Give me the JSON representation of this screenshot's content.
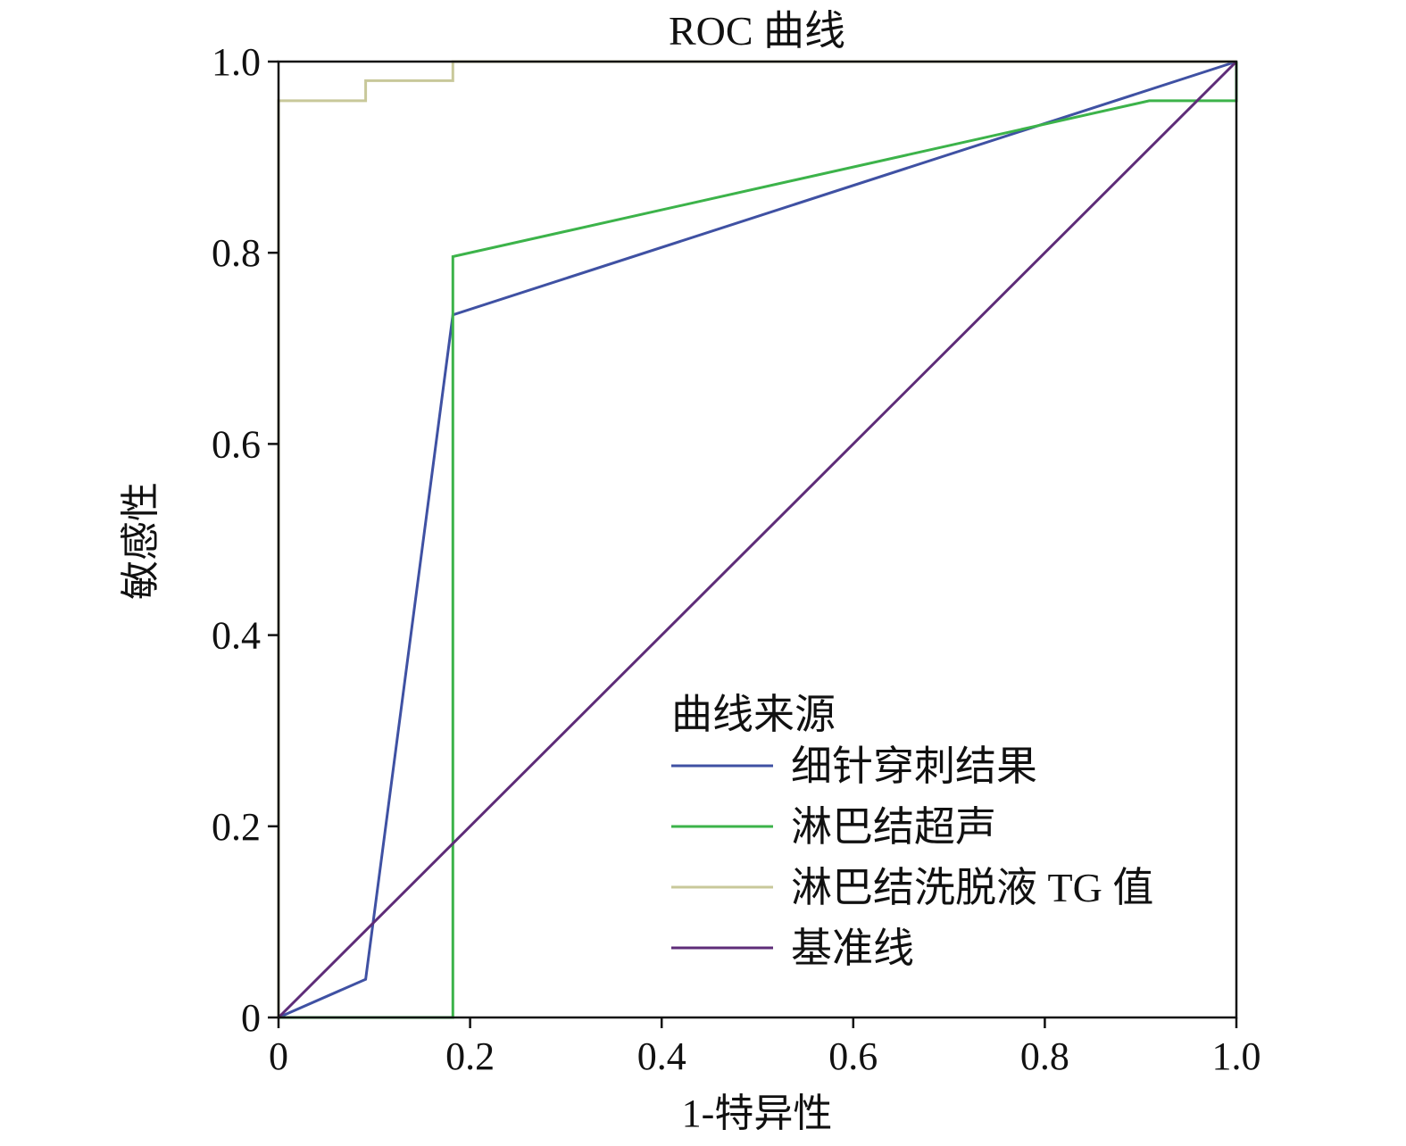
{
  "chart_data": {
    "type": "line",
    "title": "ROC 曲线",
    "xlabel": "1-特异性",
    "ylabel": "敏感性",
    "xlim": [
      0,
      1
    ],
    "ylim": [
      0,
      1
    ],
    "x_ticks": [
      0,
      0.2,
      0.4,
      0.6,
      0.8,
      1.0
    ],
    "x_tick_labels": [
      "0",
      "0.2",
      "0.4",
      "0.6",
      "0.8",
      "1.0"
    ],
    "y_ticks": [
      0,
      0.2,
      0.4,
      0.6,
      0.8,
      1.0
    ],
    "y_tick_labels": [
      "0",
      "0.2",
      "0.4",
      "0.6",
      "0.8",
      "1.0"
    ],
    "grid": false,
    "legend": {
      "title": "曲线来源",
      "position": "lower-right"
    },
    "series": [
      {
        "name": "细针穿刺结果",
        "color": "#3f51a3",
        "x": [
          0,
          0.091,
          0.182,
          1.0
        ],
        "y": [
          0,
          0.04,
          0.735,
          1.0
        ]
      },
      {
        "name": "淋巴结超声",
        "color": "#3cb34a",
        "x": [
          0,
          0.182,
          0.182,
          0.909,
          1.0,
          1.0
        ],
        "y": [
          0,
          0,
          0.796,
          0.959,
          0.959,
          1.0
        ]
      },
      {
        "name": "淋巴结洗脱液 TG 值",
        "color": "#c8c89a",
        "x": [
          0,
          0,
          0.091,
          0.091,
          0.182,
          0.182,
          1.0
        ],
        "y": [
          0,
          0.959,
          0.959,
          0.98,
          0.98,
          1.0,
          1.0
        ]
      },
      {
        "name": "基准线",
        "color": "#5e2c78",
        "x": [
          0,
          1.0
        ],
        "y": [
          0,
          1.0
        ]
      }
    ]
  }
}
